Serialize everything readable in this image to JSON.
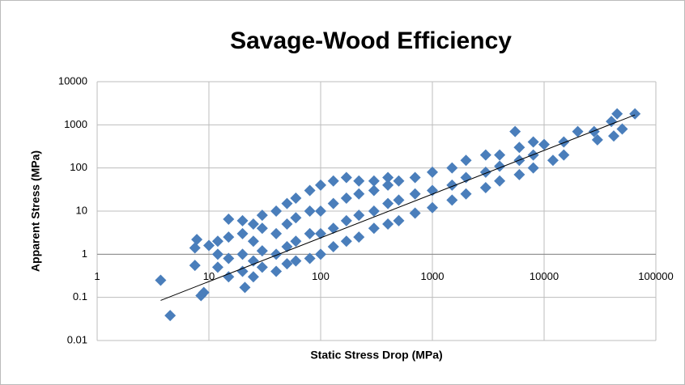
{
  "chart_data": {
    "type": "scatter",
    "title": "Savage-Wood Efficiency",
    "xlabel": "Static Stress Drop (MPa)",
    "ylabel": "Apparent Stress (MPa)",
    "xscale": "log",
    "yscale": "log",
    "grid": true,
    "color": "#4a7ebb",
    "xaxis_at": 1,
    "xlim": [
      1,
      100000
    ],
    "ylim": [
      0.01,
      10000
    ],
    "xticks": [
      1,
      10,
      100,
      1000,
      10000,
      100000
    ],
    "yticks": [
      0.01,
      0.1,
      1,
      10,
      100,
      1000,
      10000
    ],
    "x": [
      3.7,
      4.5,
      7.5,
      7.8,
      7.5,
      8.5,
      9,
      10,
      15,
      21,
      45000,
      65000,
      50000,
      42000,
      40000,
      5500,
      12000,
      20000,
      28000,
      30000,
      10000,
      12,
      12,
      12,
      15,
      15,
      15,
      20,
      20,
      20,
      20,
      25,
      25,
      25,
      25,
      30,
      30,
      30,
      30,
      40,
      40,
      40,
      40,
      50,
      50,
      50,
      50,
      60,
      60,
      60,
      60,
      80,
      80,
      80,
      80,
      100,
      100,
      100,
      100,
      130,
      130,
      130,
      130,
      170,
      170,
      170,
      170,
      220,
      220,
      220,
      220,
      300,
      300,
      300,
      300,
      400,
      400,
      400,
      400,
      500,
      500,
      500,
      700,
      700,
      700,
      1000,
      1000,
      1000,
      1500,
      1500,
      1500,
      2000,
      2000,
      2000,
      3000,
      3000,
      3000,
      4000,
      4000,
      4000,
      6000,
      6000,
      6000,
      8000,
      8000,
      8000,
      15000,
      15000
    ],
    "y": [
      0.25,
      0.038,
      1.4,
      2.2,
      0.55,
      0.11,
      0.13,
      1.6,
      6.5,
      0.17,
      1800,
      1800,
      800,
      550,
      1200,
      700,
      150,
      700,
      700,
      450,
      350,
      0.5,
      1,
      2,
      0.3,
      0.8,
      2.5,
      0.4,
      1,
      3,
      6,
      0.3,
      0.7,
      2,
      5,
      0.5,
      1.2,
      4,
      8,
      0.4,
      1,
      3,
      10,
      0.6,
      1.5,
      5,
      15,
      0.7,
      2,
      7,
      20,
      0.8,
      3,
      10,
      30,
      1,
      3,
      10,
      40,
      1.5,
      4,
      15,
      50,
      2,
      6,
      20,
      60,
      2.5,
      8,
      25,
      50,
      4,
      10,
      30,
      50,
      5,
      15,
      40,
      60,
      6,
      18,
      50,
      9,
      25,
      60,
      12,
      30,
      80,
      18,
      40,
      100,
      25,
      60,
      150,
      35,
      80,
      200,
      50,
      110,
      200,
      70,
      150,
      300,
      100,
      200,
      400,
      200,
      400
    ],
    "trendline": {
      "x": [
        3.7,
        65000
      ],
      "y": [
        0.085,
        1700
      ]
    }
  }
}
